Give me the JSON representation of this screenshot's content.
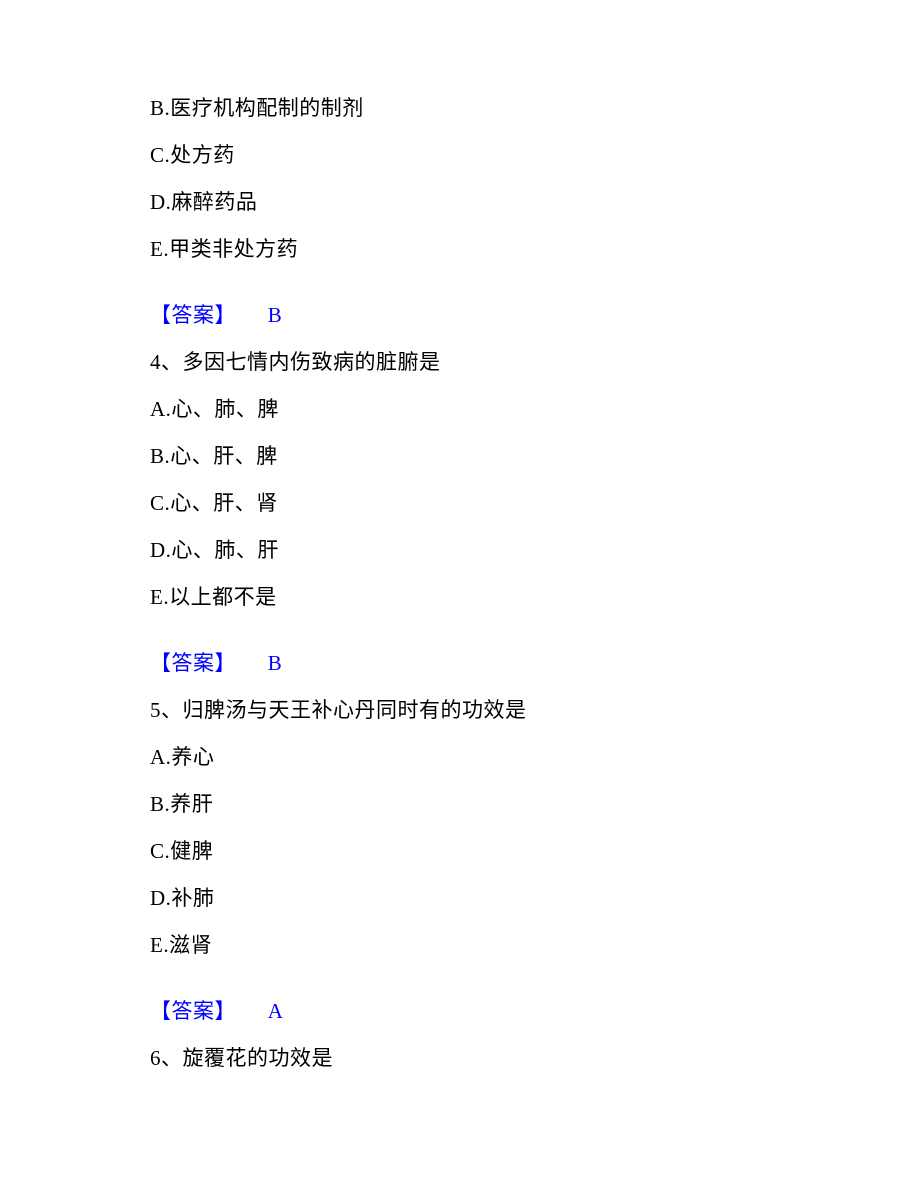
{
  "q3": {
    "options": {
      "b": "B.医疗机构配制的制剂",
      "c": "C.处方药",
      "d": "D.麻醉药品",
      "e": "E.甲类非处方药"
    },
    "answer_label": "【答案】",
    "answer_value": "B"
  },
  "q4": {
    "question": "4、多因七情内伤致病的脏腑是",
    "options": {
      "a": "A.心、肺、脾",
      "b": "B.心、肝、脾",
      "c": "C.心、肝、肾",
      "d": "D.心、肺、肝",
      "e": "E.以上都不是"
    },
    "answer_label": "【答案】",
    "answer_value": "B"
  },
  "q5": {
    "question": "5、归脾汤与天王补心丹同时有的功效是",
    "options": {
      "a": "A.养心",
      "b": "B.养肝",
      "c": "C.健脾",
      "d": "D.补肺",
      "e": "E.滋肾"
    },
    "answer_label": "【答案】",
    "answer_value": "A"
  },
  "q6": {
    "question": "6、旋覆花的功效是"
  },
  "colors": {
    "text": "#000000",
    "answer": "#0000ff",
    "background": "#ffffff"
  },
  "typography": {
    "font_family": "SimSun",
    "font_size_pt": 16,
    "line_spacing": 26
  }
}
